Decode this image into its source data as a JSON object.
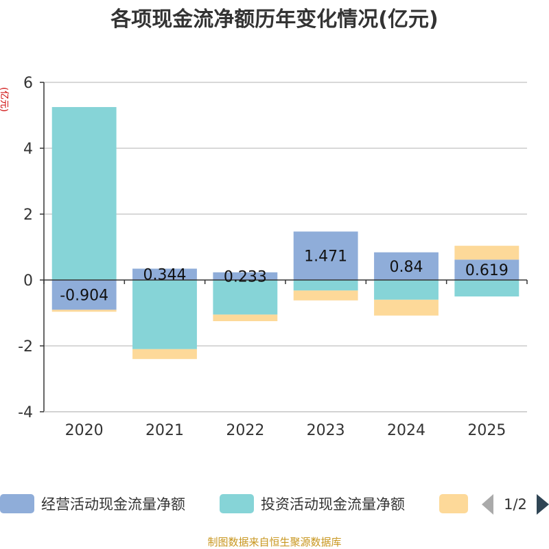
{
  "chart_data": {
    "type": "bar",
    "stacked": true,
    "title": "各项现金流净额历年变化情况(亿元)",
    "ylabel": "(亿元)",
    "xlabel": "",
    "categories": [
      "2020",
      "2021",
      "2022",
      "2023",
      "2024",
      "2025"
    ],
    "ylim": [
      -4,
      6
    ],
    "yticks": [
      -4,
      -2,
      0,
      2,
      4,
      6
    ],
    "grid": true,
    "series": [
      {
        "name": "经营活动现金流量净额",
        "color": "#8fadd9",
        "values": [
          -0.904,
          0.344,
          0.233,
          1.471,
          0.84,
          0.619
        ],
        "data_labels": [
          "-0.904",
          "0.344",
          "0.233",
          "1.471",
          "0.84",
          "0.619"
        ]
      },
      {
        "name": "投资活动现金流量净额",
        "color": "#86d4d7",
        "values": [
          5.25,
          -2.1,
          -1.05,
          -0.32,
          -0.6,
          -0.5
        ]
      },
      {
        "name": "",
        "color": "#fdd999",
        "values": [
          -0.06,
          -0.3,
          -0.2,
          -0.3,
          -0.48,
          0.42
        ]
      }
    ]
  },
  "legend": {
    "items": [
      "经营活动现金流量净额",
      "投资活动现金流量净额",
      ""
    ],
    "page": "1/2"
  },
  "source_note": "制图数据来自恒生聚源数据库"
}
